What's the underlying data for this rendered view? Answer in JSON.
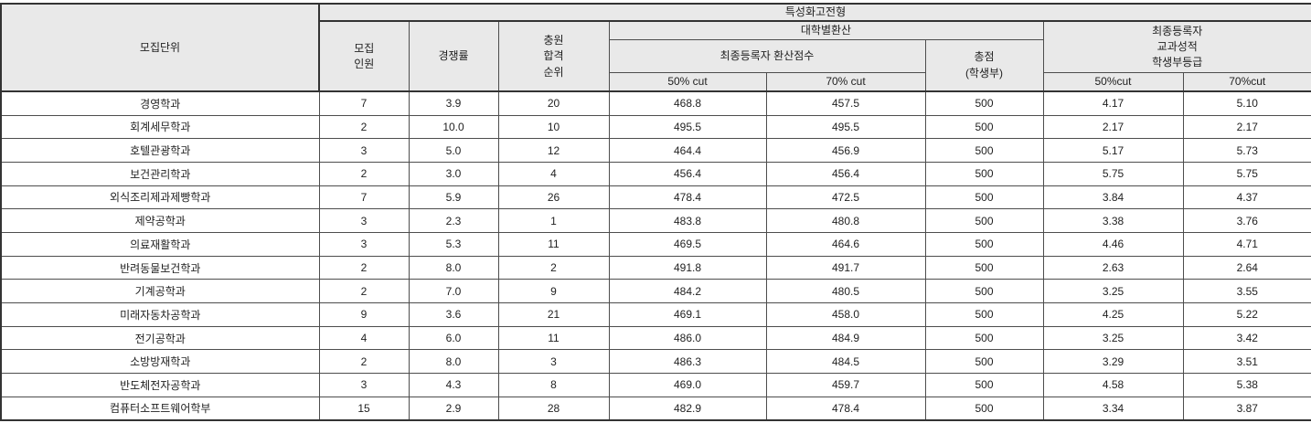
{
  "accent_colors": {
    "header_bg": "#e9e9e9",
    "grid_line": "#4d4d4d",
    "outer_border": "#333333",
    "text": "#1f1f1f",
    "body_bg": "#ffffff"
  },
  "table": {
    "header": {
      "recruitment_unit": "모집단위",
      "admission_type": "특성화고전형",
      "quota": "모집\n인원",
      "competition_rate": "경쟁률",
      "supplementary_pass_rank": "충원\n합격\n순위",
      "university_conversion": "대학별환산",
      "converted_score": "최종등록자 환산점수",
      "total_score": "총점\n(학생부)",
      "final_registrant_grade": "최종등록자\n교과성적\n학생부등급",
      "score_cut50": "50% cut",
      "score_cut70": "70% cut",
      "grade_cut50": "50%cut",
      "grade_cut70": "70%cut"
    },
    "rows": [
      [
        "경영학과",
        "7",
        "3.9",
        "20",
        "468.8",
        "457.5",
        "500",
        "4.17",
        "5.10"
      ],
      [
        "회계세무학과",
        "2",
        "10.0",
        "10",
        "495.5",
        "495.5",
        "500",
        "2.17",
        "2.17"
      ],
      [
        "호텔관광학과",
        "3",
        "5.0",
        "12",
        "464.4",
        "456.9",
        "500",
        "5.17",
        "5.73"
      ],
      [
        "보건관리학과",
        "2",
        "3.0",
        "4",
        "456.4",
        "456.4",
        "500",
        "5.75",
        "5.75"
      ],
      [
        "외식조리제과제빵학과",
        "7",
        "5.9",
        "26",
        "478.4",
        "472.5",
        "500",
        "3.84",
        "4.37"
      ],
      [
        "제약공학과",
        "3",
        "2.3",
        "1",
        "483.8",
        "480.8",
        "500",
        "3.38",
        "3.76"
      ],
      [
        "의료재활학과",
        "3",
        "5.3",
        "11",
        "469.5",
        "464.6",
        "500",
        "4.46",
        "4.71"
      ],
      [
        "반려동물보건학과",
        "2",
        "8.0",
        "2",
        "491.8",
        "491.7",
        "500",
        "2.63",
        "2.64"
      ],
      [
        "기계공학과",
        "2",
        "7.0",
        "9",
        "484.2",
        "480.5",
        "500",
        "3.25",
        "3.55"
      ],
      [
        "미래자동차공학과",
        "9",
        "3.6",
        "21",
        "469.1",
        "458.0",
        "500",
        "4.25",
        "5.22"
      ],
      [
        "전기공학과",
        "4",
        "6.0",
        "11",
        "486.0",
        "484.9",
        "500",
        "3.25",
        "3.42"
      ],
      [
        "소방방재학과",
        "2",
        "8.0",
        "3",
        "486.3",
        "484.5",
        "500",
        "3.29",
        "3.51"
      ],
      [
        "반도체전자공학과",
        "3",
        "4.3",
        "8",
        "469.0",
        "459.7",
        "500",
        "4.58",
        "5.38"
      ],
      [
        "컴퓨터소프트웨어학부",
        "15",
        "2.9",
        "28",
        "482.9",
        "478.4",
        "500",
        "3.34",
        "3.87"
      ]
    ]
  }
}
